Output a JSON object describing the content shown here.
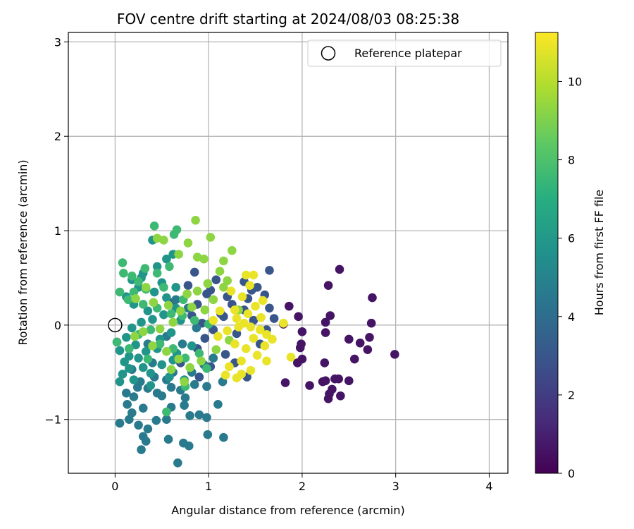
{
  "chart_data": {
    "type": "scatter",
    "title": "FOV centre drift starting at 2024/08/03 08:25:38",
    "xlabel": "Angular distance from reference (arcmin)",
    "ylabel": "Rotation from reference (arcmin)",
    "xlim": [
      -0.5,
      4.2
    ],
    "ylim": [
      -1.57,
      3.1
    ],
    "xticks": [
      0,
      1,
      2,
      3,
      4
    ],
    "xtick_labels": [
      "0",
      "1",
      "2",
      "3",
      "4"
    ],
    "yticks": [
      -1,
      0,
      1,
      2,
      3
    ],
    "ytick_labels": [
      "−1",
      "0",
      "1",
      "2",
      "3"
    ],
    "grid": true,
    "legend": {
      "placement": "top-right",
      "entries": [
        "Reference platepar"
      ]
    },
    "reference_point": {
      "x": 0,
      "y": 0,
      "label": "Reference platepar",
      "marker": "open-circle"
    },
    "colorbar": {
      "label": "Hours from first FF file",
      "range": [
        0,
        11.25
      ],
      "ticks": [
        0,
        2,
        4,
        6,
        8,
        10
      ],
      "tick_labels": [
        "0",
        "2",
        "4",
        "6",
        "8",
        "10"
      ],
      "colormap": "viridis"
    },
    "series": [
      {
        "points": [
          [
            2.4,
            0.59
          ],
          [
            2.28,
            0.42
          ],
          [
            2.75,
            0.29
          ],
          [
            2.3,
            0.1
          ],
          [
            1.96,
            0.09
          ],
          [
            2.25,
            0.03
          ],
          [
            2.74,
            0.02
          ],
          [
            1.8,
            0.01
          ],
          [
            2.0,
            -0.07
          ],
          [
            2.25,
            -0.08
          ],
          [
            2.5,
            -0.15
          ],
          [
            2.72,
            -0.13
          ],
          [
            2.62,
            -0.19
          ],
          [
            2.99,
            -0.31
          ],
          [
            2.7,
            -0.26
          ],
          [
            1.98,
            -0.24
          ],
          [
            1.99,
            -0.2
          ],
          [
            2.56,
            -0.36
          ],
          [
            2.0,
            -0.36
          ],
          [
            1.95,
            -0.4
          ],
          [
            2.24,
            -0.4
          ],
          [
            2.22,
            -0.6
          ],
          [
            2.25,
            -0.59
          ],
          [
            2.35,
            -0.57
          ],
          [
            2.39,
            -0.57
          ],
          [
            2.5,
            -0.59
          ],
          [
            2.08,
            -0.64
          ],
          [
            2.32,
            -0.68
          ],
          [
            2.29,
            -0.73
          ],
          [
            2.41,
            -0.75
          ],
          [
            2.28,
            -0.78
          ],
          [
            1.82,
            -0.61
          ],
          [
            1.86,
            0.2
          ]
        ]
      },
      {
        "points": [
          [
            1.65,
            0.58
          ],
          [
            1.38,
            0.46
          ],
          [
            1.52,
            0.4
          ],
          [
            1.46,
            0.37
          ],
          [
            1.65,
            0.18
          ],
          [
            1.7,
            0.07
          ],
          [
            1.62,
            -0.05
          ],
          [
            0.85,
            0.56
          ],
          [
            0.78,
            0.42
          ],
          [
            1.02,
            0.37
          ],
          [
            1.2,
            0.3
          ],
          [
            0.88,
            0.22
          ],
          [
            1.38,
            0.16
          ],
          [
            1.48,
            0.05
          ],
          [
            1.13,
            0.12
          ],
          [
            0.93,
            0.02
          ],
          [
            1.05,
            -0.05
          ],
          [
            1.3,
            -0.09
          ],
          [
            1.55,
            -0.2
          ],
          [
            0.96,
            -0.14
          ],
          [
            1.18,
            -0.31
          ],
          [
            1.02,
            -0.44
          ],
          [
            1.28,
            -0.4
          ],
          [
            1.41,
            -0.55
          ],
          [
            0.88,
            -0.25
          ],
          [
            0.7,
            -0.4
          ],
          [
            0.9,
            -0.55
          ],
          [
            1.25,
            0.22
          ],
          [
            1.08,
            0.48
          ],
          [
            1.42,
            0.28
          ],
          [
            0.98,
            0.33
          ],
          [
            1.16,
            0.09
          ],
          [
            0.82,
            0.1
          ],
          [
            1.6,
            0.32
          ],
          [
            0.62,
            0.24
          ]
        ]
      },
      {
        "points": [
          [
            0.27,
            -0.6
          ],
          [
            0.35,
            -0.67
          ],
          [
            0.45,
            -0.72
          ],
          [
            0.6,
            -0.66
          ],
          [
            0.7,
            -0.69
          ],
          [
            0.85,
            -0.63
          ],
          [
            0.98,
            -0.65
          ],
          [
            1.15,
            -0.6
          ],
          [
            1.1,
            -0.84
          ],
          [
            0.9,
            -0.95
          ],
          [
            0.74,
            -0.85
          ],
          [
            0.8,
            -0.96
          ],
          [
            0.55,
            -1.0
          ],
          [
            0.35,
            -1.1
          ],
          [
            0.3,
            -1.18
          ],
          [
            0.28,
            -1.32
          ],
          [
            0.33,
            -1.23
          ],
          [
            0.44,
            -1.01
          ],
          [
            0.25,
            -1.06
          ],
          [
            0.15,
            -1.0
          ],
          [
            0.05,
            -1.04
          ],
          [
            0.13,
            -0.84
          ],
          [
            0.2,
            -0.76
          ],
          [
            0.57,
            -1.21
          ],
          [
            0.73,
            -1.25
          ],
          [
            0.79,
            -1.28
          ],
          [
            0.67,
            -1.46
          ],
          [
            0.99,
            -1.16
          ],
          [
            1.16,
            -1.19
          ],
          [
            0.55,
            -0.58
          ],
          [
            0.62,
            -0.5
          ],
          [
            0.42,
            -0.55
          ],
          [
            0.3,
            -0.88
          ],
          [
            0.18,
            -0.93
          ],
          [
            0.12,
            -0.72
          ],
          [
            0.75,
            -0.77
          ],
          [
            0.95,
            -0.42
          ],
          [
            0.6,
            -0.87
          ],
          [
            0.5,
            -0.75
          ],
          [
            0.24,
            -0.66
          ],
          [
            0.18,
            -0.47
          ],
          [
            0.4,
            -0.4
          ],
          [
            0.82,
            -0.5
          ],
          [
            1.05,
            -0.35
          ],
          [
            0.72,
            -0.2
          ],
          [
            0.87,
            -0.03
          ],
          [
            0.78,
            0.18
          ],
          [
            0.65,
            0.27
          ],
          [
            0.55,
            -0.12
          ],
          [
            0.35,
            -0.2
          ],
          [
            0.98,
            -0.98
          ]
        ]
      },
      {
        "points": [
          [
            0.05,
            -0.6
          ],
          [
            0.08,
            -0.52
          ],
          [
            0.15,
            -0.46
          ],
          [
            0.1,
            -0.39
          ],
          [
            0.25,
            -0.35
          ],
          [
            0.3,
            -0.45
          ],
          [
            0.38,
            -0.51
          ],
          [
            0.5,
            -0.42
          ],
          [
            0.62,
            -0.37
          ],
          [
            0.45,
            -0.25
          ],
          [
            0.22,
            -0.21
          ],
          [
            0.12,
            -0.13
          ],
          [
            0.18,
            -0.03
          ],
          [
            0.28,
            0.03
          ],
          [
            0.4,
            0.06
          ],
          [
            0.52,
            0.11
          ],
          [
            0.35,
            0.15
          ],
          [
            0.2,
            0.22
          ],
          [
            0.12,
            0.3
          ],
          [
            0.25,
            0.4
          ],
          [
            0.42,
            0.35
          ],
          [
            0.55,
            0.29
          ],
          [
            0.65,
            0.18
          ],
          [
            0.7,
            0.05
          ],
          [
            0.6,
            -0.08
          ],
          [
            0.48,
            -0.15
          ],
          [
            0.33,
            -0.28
          ],
          [
            0.15,
            -0.33
          ],
          [
            0.05,
            -0.27
          ],
          [
            0.02,
            -0.18
          ],
          [
            0.58,
            -0.55
          ],
          [
            0.2,
            -0.58
          ],
          [
            0.38,
            -0.64
          ],
          [
            0.74,
            -0.58
          ],
          [
            0.66,
            -0.3
          ],
          [
            0.82,
            -0.22
          ],
          [
            0.5,
            0.45
          ],
          [
            0.3,
            0.55
          ],
          [
            0.45,
            0.62
          ],
          [
            0.55,
            0.7
          ],
          [
            0.62,
            0.75
          ],
          [
            0.4,
            0.9
          ],
          [
            0.65,
            0.4
          ],
          [
            0.18,
            0.48
          ],
          [
            0.28,
            0.5
          ]
        ]
      },
      {
        "points": [
          [
            0.08,
            0.66
          ],
          [
            0.09,
            0.55
          ],
          [
            0.18,
            0.52
          ],
          [
            0.25,
            0.46
          ],
          [
            0.33,
            0.38
          ],
          [
            0.2,
            0.35
          ],
          [
            0.05,
            0.35
          ],
          [
            0.14,
            0.27
          ],
          [
            0.3,
            0.22
          ],
          [
            0.45,
            0.18
          ],
          [
            0.6,
            0.12
          ],
          [
            0.72,
            0.1
          ],
          [
            0.85,
            0.05
          ],
          [
            1.0,
            0.01
          ],
          [
            0.38,
            -0.05
          ],
          [
            0.25,
            -0.1
          ],
          [
            0.15,
            -0.25
          ],
          [
            0.48,
            -0.2
          ],
          [
            0.62,
            -0.25
          ],
          [
            0.75,
            -0.35
          ],
          [
            0.9,
            -0.3
          ],
          [
            0.55,
            -0.92
          ],
          [
            0.75,
            -0.65
          ],
          [
            0.98,
            -0.46
          ],
          [
            0.42,
            1.05
          ],
          [
            0.63,
            0.96
          ],
          [
            0.66,
            1.01
          ],
          [
            0.58,
            0.62
          ],
          [
            0.45,
            0.55
          ],
          [
            0.32,
            0.6
          ],
          [
            0.02,
            -0.18
          ],
          [
            0.35,
            -0.36
          ],
          [
            0.52,
            0.4
          ],
          [
            0.73,
            0.27
          ]
        ]
      },
      {
        "points": [
          [
            0.86,
            1.11
          ],
          [
            1.02,
            0.93
          ],
          [
            0.52,
            0.9
          ],
          [
            0.45,
            0.92
          ],
          [
            0.78,
            0.87
          ],
          [
            0.88,
            0.72
          ],
          [
            0.95,
            0.7
          ],
          [
            1.25,
            0.79
          ],
          [
            1.16,
            0.68
          ],
          [
            1.2,
            0.47
          ],
          [
            1.12,
            0.57
          ],
          [
            0.68,
            0.75
          ],
          [
            0.33,
            0.4
          ],
          [
            0.22,
            0.28
          ],
          [
            0.41,
            0.24
          ],
          [
            0.57,
            0.21
          ],
          [
            0.7,
            0.15
          ],
          [
            0.82,
            0.19
          ],
          [
            0.96,
            0.16
          ],
          [
            1.05,
            0.27
          ],
          [
            0.62,
            0.03
          ],
          [
            0.48,
            -0.04
          ],
          [
            0.3,
            -0.07
          ],
          [
            0.21,
            -0.12
          ],
          [
            0.4,
            -0.22
          ],
          [
            0.55,
            -0.28
          ],
          [
            0.68,
            -0.36
          ],
          [
            0.8,
            -0.45
          ],
          [
            0.92,
            -0.38
          ],
          [
            1.08,
            -0.26
          ],
          [
            1.22,
            -0.16
          ],
          [
            0.74,
            -0.6
          ],
          [
            0.88,
            0.36
          ],
          [
            1.32,
            0.16
          ],
          [
            0.99,
            0.44
          ],
          [
            0.6,
            -0.47
          ],
          [
            0.77,
            0.33
          ],
          [
            1.16,
            0.4
          ]
        ]
      },
      {
        "points": [
          [
            1.4,
            0.53
          ],
          [
            1.48,
            0.53
          ],
          [
            1.58,
            0.26
          ],
          [
            1.8,
            0.02
          ],
          [
            1.28,
            0.16
          ],
          [
            1.12,
            0.15
          ],
          [
            1.3,
            0.07
          ],
          [
            1.38,
            0.02
          ],
          [
            1.45,
            -0.02
          ],
          [
            1.55,
            -0.05
          ],
          [
            1.62,
            -0.1
          ],
          [
            1.2,
            -0.06
          ],
          [
            1.1,
            -0.12
          ],
          [
            1.28,
            -0.2
          ],
          [
            1.4,
            -0.25
          ],
          [
            1.52,
            -0.32
          ],
          [
            1.62,
            -0.38
          ],
          [
            1.35,
            -0.38
          ],
          [
            1.22,
            -0.44
          ],
          [
            1.45,
            -0.48
          ],
          [
            1.35,
            -0.52
          ],
          [
            1.3,
            -0.56
          ],
          [
            1.18,
            -0.53
          ],
          [
            1.88,
            -0.34
          ],
          [
            1.42,
            0.12
          ],
          [
            1.5,
            0.2
          ],
          [
            1.36,
            0.3
          ],
          [
            1.24,
            0.36
          ],
          [
            1.56,
            0.08
          ],
          [
            1.48,
            -0.14
          ],
          [
            1.32,
            -0.02
          ],
          [
            1.6,
            -0.22
          ],
          [
            1.68,
            -0.15
          ],
          [
            1.05,
            0.05
          ],
          [
            1.44,
            0.42
          ]
        ]
      }
    ],
    "series_hours": [
      0.6,
      3.0,
      4.6,
      5.8,
      7.6,
      9.3,
      10.9
    ]
  }
}
